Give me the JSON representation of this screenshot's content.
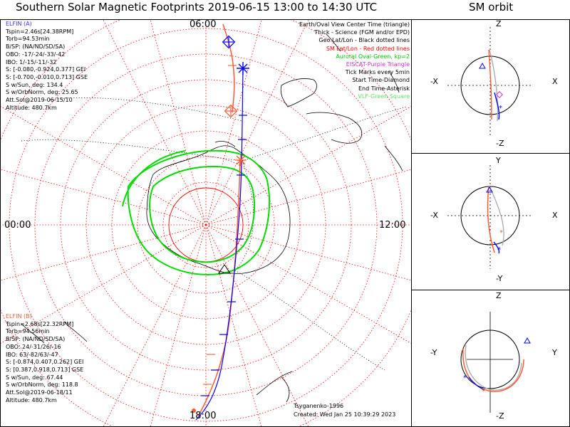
{
  "titles": {
    "main": "Southern Solar Magnetic Footprints 2019-06-15 13:00 to 14:30 UTC",
    "sm_orbit": "SM orbit"
  },
  "clock_labels": {
    "top": "06:00",
    "left": "00:00",
    "right": "12:00",
    "bottom": "18:00"
  },
  "elfin_a": {
    "name": "ELFIN (A)",
    "lines": [
      "Tspin=2.46s[24.38RPM]",
      "Torb=94.53min",
      "B/SP: (NA/ND/SD/SA)",
      "OBO: -17/-24/-33/-42",
      "IBO: 1/-15/-11/-32",
      "S: [-0.080,-0.924,0.377] GEI",
      "S: [-0.700,-0.010,0.713] GSE",
      "S w/Sun, deg: 134.4",
      "S w/OrbNorm, deg: 25.65",
      "Att.Sol@2019-06-15/10",
      "Altitude: 480.7km"
    ]
  },
  "elfin_b": {
    "name": "ELFIN (B)",
    "lines": [
      "Tspin=2.68s[22.32RPM]",
      "Torb=94.56min",
      "B/SP: (NA/ND/SD/SA)",
      "OBO: 24/-31/26/-16",
      "IBO: 63/-82/63/-47",
      "S: [-0.874,0.407,0.262] GEI",
      "S: [0.387,0.918,0.713] GSE",
      "S w/Sun, deg: 67.44",
      "S w/OrbNorm, deg: 118.8",
      "Att.Sol@2019-06-18/11",
      "Altitude: 480.7km"
    ]
  },
  "legend": [
    {
      "text": "Earth/Oval View Center Time (triangle)",
      "color": "#000000"
    },
    {
      "text": "Thick - Science (FGM and/or EPD)",
      "color": "#000000"
    },
    {
      "text": "Geo Lat/Lon - Black dotted lines",
      "color": "#000000"
    },
    {
      "text": "SM Lat/Lon - Red dotted lines",
      "color": "#ff0000"
    },
    {
      "text": "Auroral Oval-Green, kp=2",
      "color": "#00cc00"
    },
    {
      "text": "EISCAT-Purple Triangle",
      "color": "#cc33cc"
    },
    {
      "text": "Tick Marks every 5min",
      "color": "#000000"
    },
    {
      "text": "Start Time-Diamond",
      "color": "#000000"
    },
    {
      "text": "End Time-Asterisk",
      "color": "#000000"
    },
    {
      "text": "VLF-Green Square",
      "color": "#66dd66"
    }
  ],
  "credits": {
    "model": "Tsyganenko-1996",
    "created": "Created: Wed Jan 25 10:39:29 2023"
  },
  "sm_panels": [
    {
      "top": "Z",
      "bottom": "-Z",
      "left": "-X",
      "right": "X"
    },
    {
      "top": "Y",
      "bottom": "-Y",
      "left": "-X",
      "right": "X"
    },
    {
      "top": "Z",
      "bottom": "-Z",
      "left": "-Y",
      "right": "Y"
    }
  ],
  "colors": {
    "elfin_a": "#ff5a36",
    "elfin_b": "#0000ff",
    "sm_grid": "#ff0000",
    "geo_grid": "#000000",
    "oval": "#00dd00"
  }
}
